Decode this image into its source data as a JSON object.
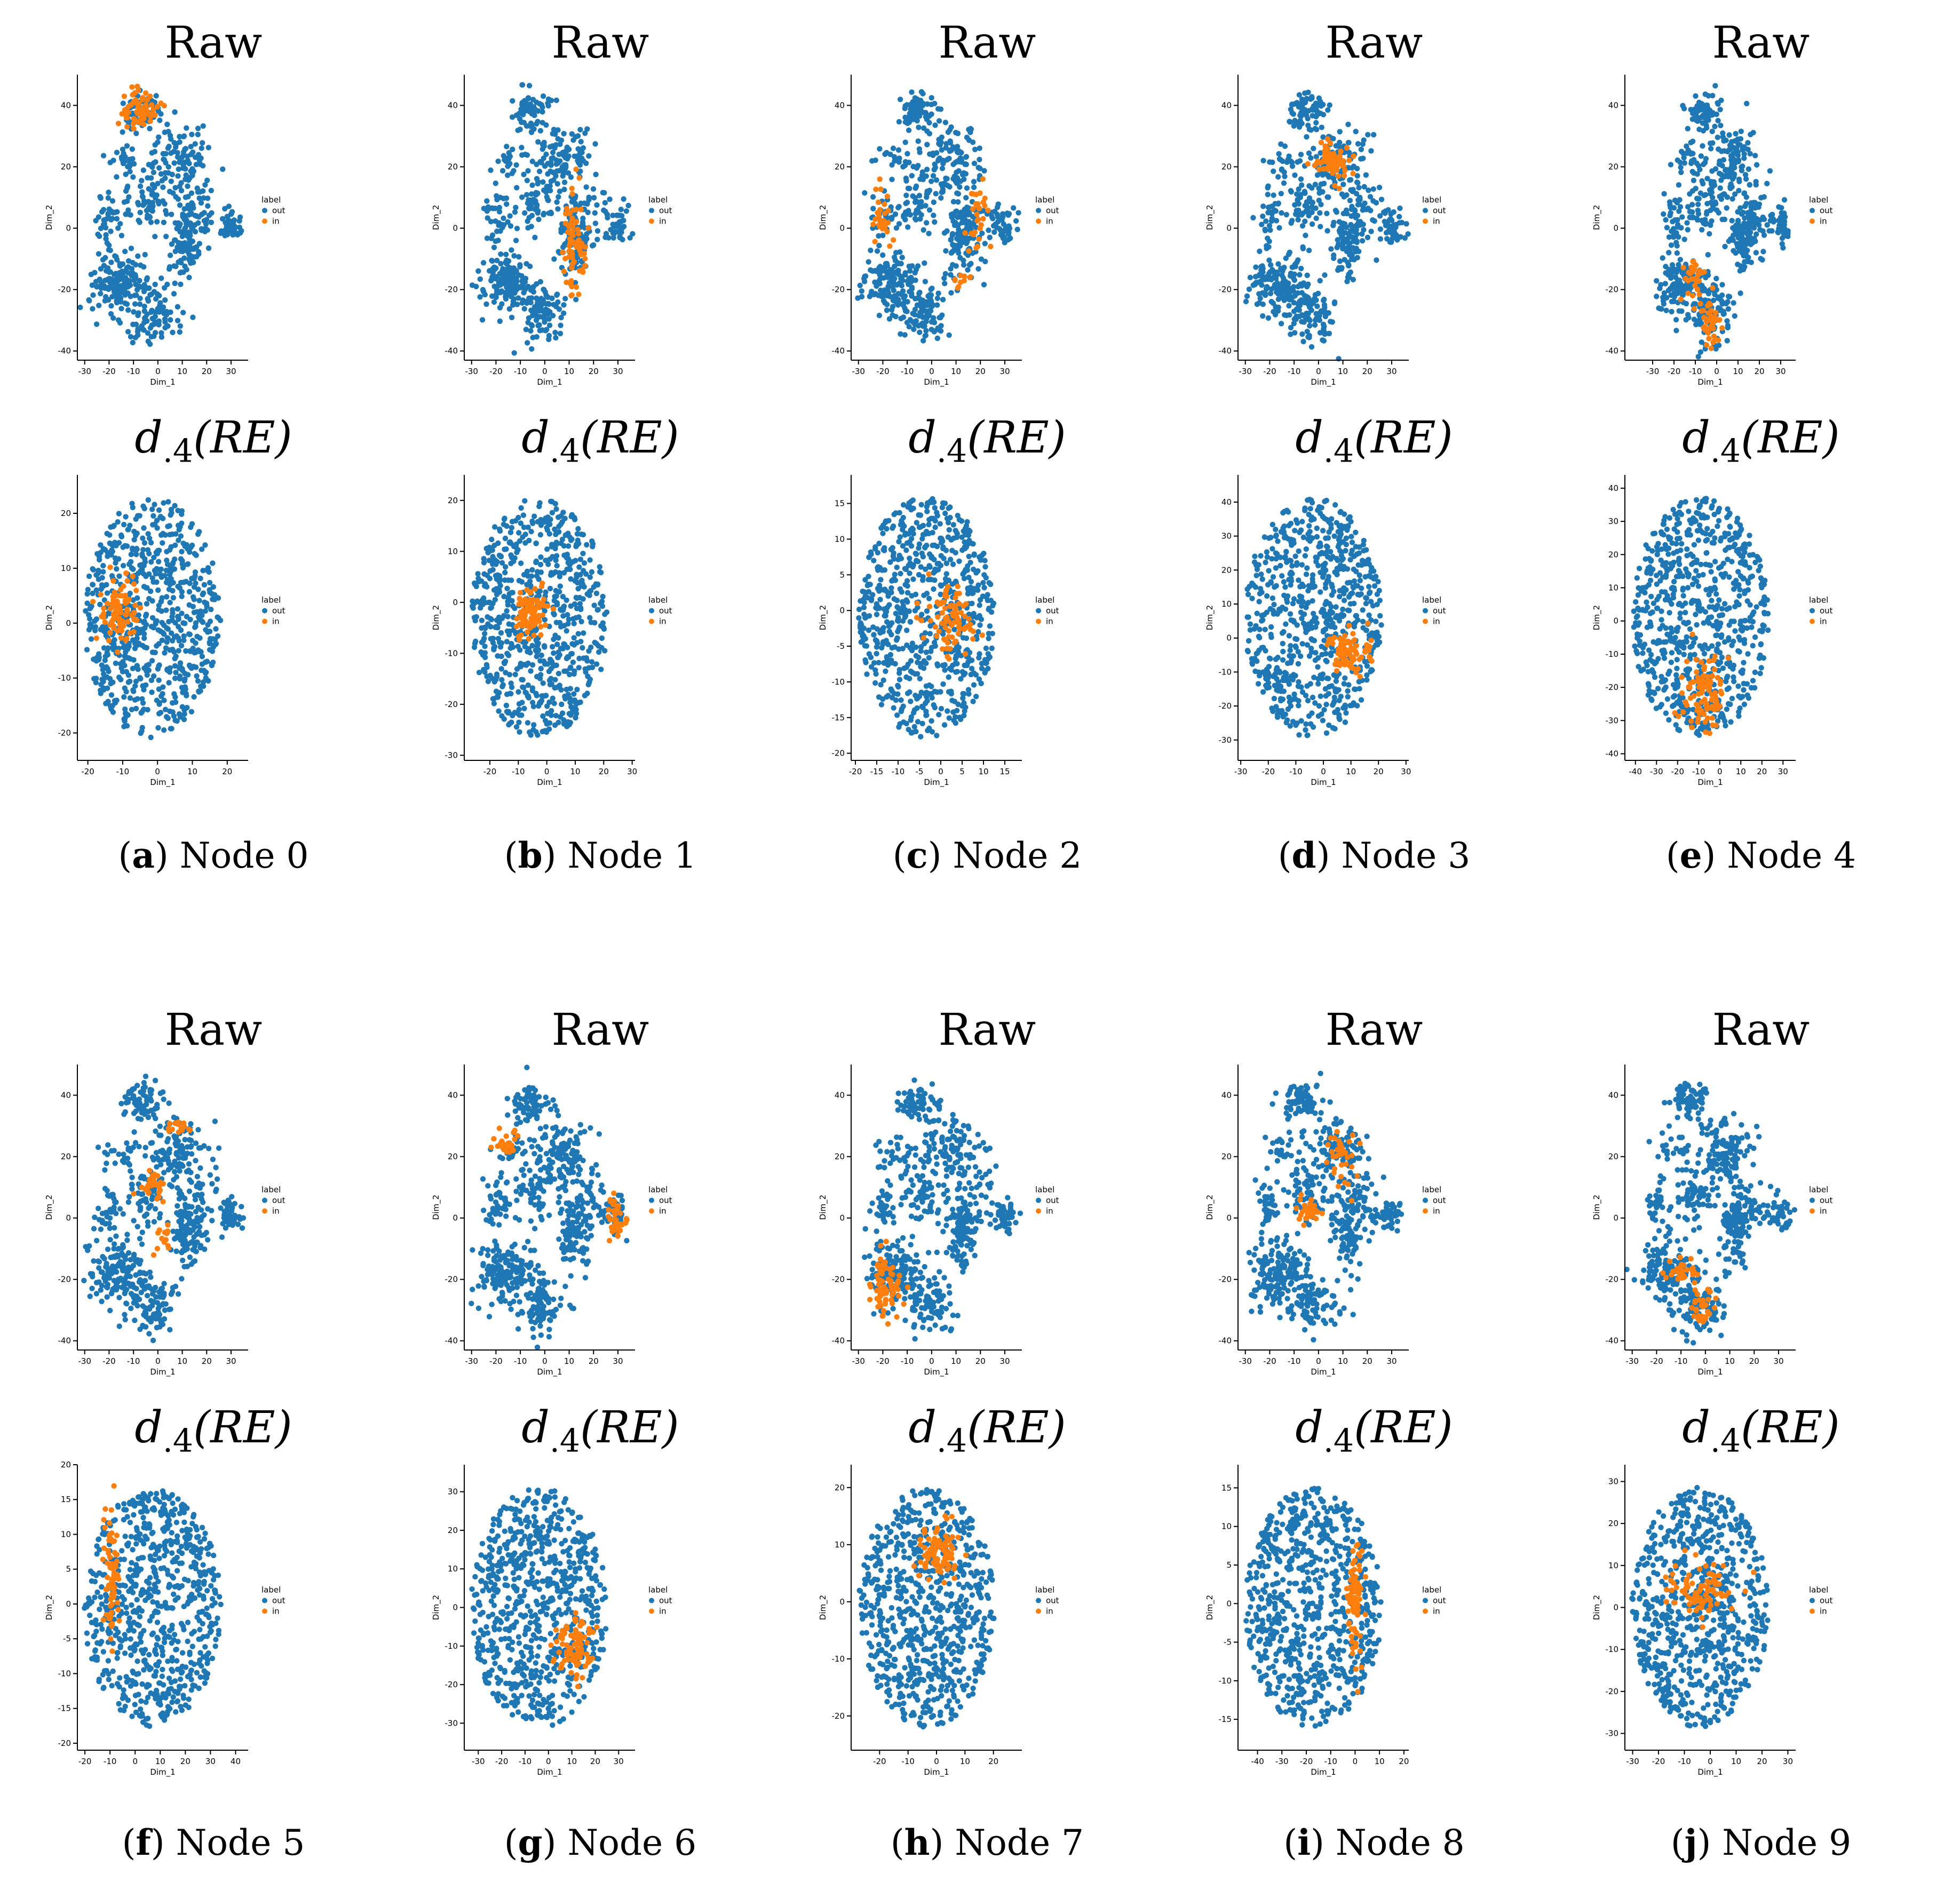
{
  "colors": {
    "out": "#1f77b4",
    "in": "#ff7f0e",
    "axis": "#000000"
  },
  "caption_prefix_open": "(",
  "caption_prefix_close": ")",
  "chart_data": [
    {
      "id": "raw-0",
      "type": "scatter",
      "title": "Raw",
      "xlabel": "Dim_1",
      "ylabel": "Dim_2",
      "xlim": [
        -33,
        37
      ],
      "ylim": [
        -43,
        50
      ],
      "xticks": [
        -30,
        -20,
        -10,
        0,
        10,
        20,
        30
      ],
      "yticks": [
        -40,
        -20,
        0,
        20,
        40
      ],
      "legend": {
        "title": "label",
        "entries": [
          "out",
          "in"
        ],
        "placement": "right"
      },
      "in_clusters": [
        {
          "cx": -7,
          "cy": 38,
          "sx": 4,
          "sy": 3,
          "n": 70
        }
      ],
      "seed": 101
    },
    {
      "id": "raw-1",
      "type": "scatter",
      "title": "Raw",
      "xlabel": "Dim_1",
      "ylabel": "Dim_2",
      "xlim": [
        -33,
        37
      ],
      "ylim": [
        -43,
        50
      ],
      "xticks": [
        -30,
        -20,
        -10,
        0,
        10,
        20,
        30
      ],
      "yticks": [
        -40,
        -20,
        0,
        20,
        40
      ],
      "legend": {
        "title": "label",
        "entries": [
          "out",
          "in"
        ],
        "placement": "right"
      },
      "in_clusters": [
        {
          "cx": 12,
          "cy": -5,
          "sx": 2.5,
          "sy": 7,
          "n": 70
        }
      ],
      "seed": 102
    },
    {
      "id": "raw-2",
      "type": "scatter",
      "title": "Raw",
      "xlabel": "Dim_1",
      "ylabel": "Dim_2",
      "xlim": [
        -33,
        37
      ],
      "ylim": [
        -43,
        50
      ],
      "xticks": [
        -30,
        -20,
        -10,
        0,
        10,
        20,
        30
      ],
      "yticks": [
        -40,
        -20,
        0,
        20,
        40
      ],
      "legend": {
        "title": "label",
        "entries": [
          "out",
          "in"
        ],
        "placement": "right"
      },
      "in_clusters": [
        {
          "cx": -20,
          "cy": 5,
          "sx": 2,
          "sy": 5,
          "n": 30
        },
        {
          "cx": 19,
          "cy": 3,
          "sx": 2,
          "sy": 6,
          "n": 30
        },
        {
          "cx": 12,
          "cy": -17,
          "sx": 3,
          "sy": 2,
          "n": 10
        }
      ],
      "seed": 103
    },
    {
      "id": "raw-3",
      "type": "scatter",
      "title": "Raw",
      "xlabel": "Dim_1",
      "ylabel": "Dim_2",
      "xlim": [
        -33,
        37
      ],
      "ylim": [
        -43,
        50
      ],
      "xticks": [
        -30,
        -20,
        -10,
        0,
        10,
        20,
        30
      ],
      "yticks": [
        -40,
        -20,
        0,
        20,
        40
      ],
      "legend": {
        "title": "label",
        "entries": [
          "out",
          "in"
        ],
        "placement": "right"
      },
      "in_clusters": [
        {
          "cx": 5,
          "cy": 22,
          "sx": 4,
          "sy": 3,
          "n": 65
        }
      ],
      "seed": 104
    },
    {
      "id": "raw-4",
      "type": "scatter",
      "title": "Raw",
      "xlabel": "Dim_1",
      "ylabel": "Dim_2",
      "xlim": [
        -43,
        37
      ],
      "ylim": [
        -43,
        50
      ],
      "xticks": [
        -30,
        -20,
        -10,
        0,
        10,
        20,
        30
      ],
      "yticks": [
        -40,
        -20,
        0,
        20,
        40
      ],
      "legend": {
        "title": "label",
        "entries": [
          "out",
          "in"
        ],
        "placement": "right"
      },
      "in_clusters": [
        {
          "cx": -10,
          "cy": -16,
          "sx": 2.5,
          "sy": 4,
          "n": 30
        },
        {
          "cx": -3,
          "cy": -30,
          "sx": 3,
          "sy": 4,
          "n": 40
        }
      ],
      "seed": 105
    },
    {
      "id": "re-0",
      "type": "scatter",
      "title": "d.4(RE)",
      "xlabel": "Dim_1",
      "ylabel": "Dim_2",
      "xlim": [
        -23,
        26
      ],
      "ylim": [
        -25,
        27
      ],
      "xticks": [
        -20,
        -10,
        0,
        10,
        20
      ],
      "yticks": [
        -20,
        -10,
        0,
        10,
        20
      ],
      "legend": {
        "title": "label",
        "entries": [
          "out",
          "in"
        ],
        "placement": "right"
      },
      "in_clusters": [
        {
          "cx": -11,
          "cy": 2,
          "sx": 2.5,
          "sy": 3,
          "n": 90
        }
      ],
      "seed": 201
    },
    {
      "id": "re-1",
      "type": "scatter",
      "title": "d.4(RE)",
      "xlabel": "Dim_1",
      "ylabel": "Dim_2",
      "xlim": [
        -29,
        31
      ],
      "ylim": [
        -31,
        25
      ],
      "xticks": [
        -20,
        -10,
        0,
        10,
        20,
        30
      ],
      "yticks": [
        -30,
        -20,
        -10,
        0,
        10,
        20
      ],
      "legend": {
        "title": "label",
        "entries": [
          "out",
          "in"
        ],
        "placement": "right"
      },
      "in_clusters": [
        {
          "cx": -6,
          "cy": -2,
          "sx": 2.5,
          "sy": 2.5,
          "n": 90
        }
      ],
      "seed": 202
    },
    {
      "id": "re-2",
      "type": "scatter",
      "title": "d.4(RE)",
      "xlabel": "Dim_1",
      "ylabel": "Dim_2",
      "xlim": [
        -21,
        19
      ],
      "ylim": [
        -21,
        19
      ],
      "xticks": [
        -20,
        -15,
        -10,
        -5,
        0,
        5,
        10,
        15
      ],
      "yticks": [
        -20,
        -15,
        -10,
        -5,
        0,
        5,
        10,
        15
      ],
      "legend": {
        "title": "label",
        "entries": [
          "out",
          "in"
        ],
        "placement": "right"
      },
      "in_clusters": [
        {
          "cx": 2,
          "cy": -1,
          "sx": 3,
          "sy": 2.5,
          "n": 80
        }
      ],
      "seed": 203
    },
    {
      "id": "re-3",
      "type": "scatter",
      "title": "d.4(RE)",
      "xlabel": "Dim_1",
      "ylabel": "Dim_2",
      "xlim": [
        -31,
        31
      ],
      "ylim": [
        -36,
        48
      ],
      "xticks": [
        -30,
        -20,
        -10,
        0,
        10,
        20,
        30
      ],
      "yticks": [
        -30,
        -20,
        -10,
        0,
        10,
        20,
        30,
        40
      ],
      "legend": {
        "title": "label",
        "entries": [
          "out",
          "in"
        ],
        "placement": "right"
      },
      "in_clusters": [
        {
          "cx": 9,
          "cy": -4,
          "sx": 4,
          "sy": 3,
          "n": 80
        }
      ],
      "seed": 204
    },
    {
      "id": "re-4",
      "type": "scatter",
      "title": "d.4(RE)",
      "xlabel": "Dim_1",
      "ylabel": "Dim_2",
      "xlim": [
        -45,
        36
      ],
      "ylim": [
        -42,
        44
      ],
      "xticks": [
        -40,
        -30,
        -20,
        -10,
        0,
        10,
        20,
        30
      ],
      "yticks": [
        -40,
        -30,
        -20,
        -10,
        0,
        10,
        20,
        30,
        40
      ],
      "legend": {
        "title": "label",
        "entries": [
          "out",
          "in"
        ],
        "placement": "right"
      },
      "in_clusters": [
        {
          "cx": -8,
          "cy": -22,
          "sx": 5,
          "sy": 6,
          "n": 90
        }
      ],
      "seed": 205
    },
    {
      "id": "raw-5",
      "type": "scatter",
      "title": "Raw",
      "xlabel": "Dim_1",
      "ylabel": "Dim_2",
      "xlim": [
        -33,
        37
      ],
      "ylim": [
        -43,
        50
      ],
      "xticks": [
        -30,
        -20,
        -10,
        0,
        10,
        20,
        30
      ],
      "yticks": [
        -40,
        -20,
        0,
        20,
        40
      ],
      "legend": {
        "title": "label",
        "entries": [
          "out",
          "in"
        ],
        "placement": "right"
      },
      "in_clusters": [
        {
          "cx": -3,
          "cy": 11,
          "sx": 2.5,
          "sy": 2.5,
          "n": 30
        },
        {
          "cx": 9,
          "cy": 30,
          "sx": 2.5,
          "sy": 2,
          "n": 15
        },
        {
          "cx": 3,
          "cy": -7,
          "sx": 2,
          "sy": 3,
          "n": 15
        }
      ],
      "seed": 106
    },
    {
      "id": "raw-6",
      "type": "scatter",
      "title": "Raw",
      "xlabel": "Dim_1",
      "ylabel": "Dim_2",
      "xlim": [
        -33,
        37
      ],
      "ylim": [
        -43,
        50
      ],
      "xticks": [
        -30,
        -20,
        -10,
        0,
        10,
        20,
        30
      ],
      "yticks": [
        -40,
        -20,
        0,
        20,
        40
      ],
      "legend": {
        "title": "label",
        "entries": [
          "out",
          "in"
        ],
        "placement": "right"
      },
      "in_clusters": [
        {
          "cx": -15,
          "cy": 24,
          "sx": 2.5,
          "sy": 2,
          "n": 25
        },
        {
          "cx": 29,
          "cy": 1,
          "sx": 2,
          "sy": 3,
          "n": 40
        }
      ],
      "seed": 107
    },
    {
      "id": "raw-7",
      "type": "scatter",
      "title": "Raw",
      "xlabel": "Dim_1",
      "ylabel": "Dim_2",
      "xlim": [
        -33,
        37
      ],
      "ylim": [
        -43,
        50
      ],
      "xticks": [
        -30,
        -20,
        -10,
        0,
        10,
        20,
        30
      ],
      "yticks": [
        -40,
        -20,
        0,
        20,
        40
      ],
      "legend": {
        "title": "label",
        "entries": [
          "out",
          "in"
        ],
        "placement": "right"
      },
      "in_clusters": [
        {
          "cx": -19,
          "cy": -22,
          "sx": 3,
          "sy": 5,
          "n": 70
        }
      ],
      "seed": 108
    },
    {
      "id": "raw-8",
      "type": "scatter",
      "title": "Raw",
      "xlabel": "Dim_1",
      "ylabel": "Dim_2",
      "xlim": [
        -33,
        37
      ],
      "ylim": [
        -43,
        50
      ],
      "xticks": [
        -30,
        -20,
        -10,
        0,
        10,
        20,
        30
      ],
      "yticks": [
        -40,
        -20,
        0,
        20,
        40
      ],
      "legend": {
        "title": "label",
        "entries": [
          "out",
          "in"
        ],
        "placement": "right"
      },
      "in_clusters": [
        {
          "cx": -4,
          "cy": 2,
          "sx": 3,
          "sy": 2,
          "n": 30
        },
        {
          "cx": 10,
          "cy": 20,
          "sx": 3,
          "sy": 6,
          "n": 35
        }
      ],
      "seed": 109
    },
    {
      "id": "raw-9",
      "type": "scatter",
      "title": "Raw",
      "xlabel": "Dim_1",
      "ylabel": "Dim_2",
      "xlim": [
        -33,
        37
      ],
      "ylim": [
        -43,
        50
      ],
      "xticks": [
        -30,
        -20,
        -10,
        0,
        10,
        20,
        30
      ],
      "yticks": [
        -40,
        -20,
        0,
        20,
        40
      ],
      "legend": {
        "title": "label",
        "entries": [
          "out",
          "in"
        ],
        "placement": "right"
      },
      "in_clusters": [
        {
          "cx": -9,
          "cy": -17,
          "sx": 3,
          "sy": 2,
          "n": 30
        },
        {
          "cx": -1,
          "cy": -29,
          "sx": 2.5,
          "sy": 3,
          "n": 35
        }
      ],
      "seed": 110
    },
    {
      "id": "re-5",
      "type": "scatter",
      "title": "d.4(RE)",
      "xlabel": "Dim_1",
      "ylabel": "Dim_2",
      "xlim": [
        -23,
        45
      ],
      "ylim": [
        -21,
        20
      ],
      "xticks": [
        -20,
        -10,
        0,
        10,
        20,
        30,
        40
      ],
      "yticks": [
        -20,
        -15,
        -10,
        -5,
        0,
        5,
        10,
        15,
        20
      ],
      "legend": {
        "title": "label",
        "entries": [
          "out",
          "in"
        ],
        "placement": "right"
      },
      "in_clusters": [
        {
          "cx": -9,
          "cy": 5,
          "sx": 1.5,
          "sy": 5,
          "n": 70
        }
      ],
      "seed": 206
    },
    {
      "id": "re-6",
      "type": "scatter",
      "title": "d.4(RE)",
      "xlabel": "Dim_1",
      "ylabel": "Dim_2",
      "xlim": [
        -36,
        37
      ],
      "ylim": [
        -37,
        37
      ],
      "xticks": [
        -30,
        -20,
        -10,
        0,
        10,
        20,
        30
      ],
      "yticks": [
        -30,
        -20,
        -10,
        0,
        10,
        20,
        30
      ],
      "legend": {
        "title": "label",
        "entries": [
          "out",
          "in"
        ],
        "placement": "right"
      },
      "in_clusters": [
        {
          "cx": 10,
          "cy": -11,
          "sx": 4,
          "sy": 4,
          "n": 85
        }
      ],
      "seed": 207
    },
    {
      "id": "re-7",
      "type": "scatter",
      "title": "d.4(RE)",
      "xlabel": "Dim_1",
      "ylabel": "Dim_2",
      "xlim": [
        -30,
        30
      ],
      "ylim": [
        -26,
        24
      ],
      "xticks": [
        -20,
        -10,
        0,
        10,
        20
      ],
      "yticks": [
        -20,
        -10,
        0,
        10,
        20
      ],
      "legend": {
        "title": "label",
        "entries": [
          "out",
          "in"
        ],
        "placement": "right"
      },
      "in_clusters": [
        {
          "cx": 1,
          "cy": 9,
          "sx": 3.5,
          "sy": 2.5,
          "n": 85
        }
      ],
      "seed": 208
    },
    {
      "id": "re-8",
      "type": "scatter",
      "title": "d.4(RE)",
      "xlabel": "Dim_1",
      "ylabel": "Dim_2",
      "xlim": [
        -48,
        22
      ],
      "ylim": [
        -19,
        18
      ],
      "xticks": [
        -40,
        -30,
        -20,
        -10,
        0,
        10,
        20
      ],
      "yticks": [
        -15,
        -10,
        -5,
        0,
        5,
        10,
        15
      ],
      "legend": {
        "title": "label",
        "entries": [
          "out",
          "in"
        ],
        "placement": "right"
      },
      "in_clusters": [
        {
          "cx": 0,
          "cy": 1,
          "sx": 1.5,
          "sy": 4,
          "n": 80
        }
      ],
      "seed": 209
    },
    {
      "id": "re-9",
      "type": "scatter",
      "title": "d.4(RE)",
      "xlabel": "Dim_1",
      "ylabel": "Dim_2",
      "xlim": [
        -33,
        33
      ],
      "ylim": [
        -34,
        34
      ],
      "xticks": [
        -30,
        -20,
        -10,
        0,
        10,
        20,
        30
      ],
      "yticks": [
        -30,
        -20,
        -10,
        0,
        10,
        20,
        30
      ],
      "legend": {
        "title": "label",
        "entries": [
          "out",
          "in"
        ],
        "placement": "right"
      },
      "in_clusters": [
        {
          "cx": -3,
          "cy": 4,
          "sx": 6,
          "sy": 3,
          "n": 85
        }
      ],
      "seed": 210
    }
  ],
  "captions": [
    {
      "letter": "a",
      "text": "Node 0"
    },
    {
      "letter": "b",
      "text": "Node 1"
    },
    {
      "letter": "c",
      "text": "Node 2"
    },
    {
      "letter": "d",
      "text": "Node 3"
    },
    {
      "letter": "e",
      "text": "Node 4"
    },
    {
      "letter": "f",
      "text": "Node 5"
    },
    {
      "letter": "g",
      "text": "Node 6"
    },
    {
      "letter": "h",
      "text": "Node 7"
    },
    {
      "letter": "i",
      "text": "Node 8"
    },
    {
      "letter": "j",
      "text": "Node 9"
    }
  ]
}
